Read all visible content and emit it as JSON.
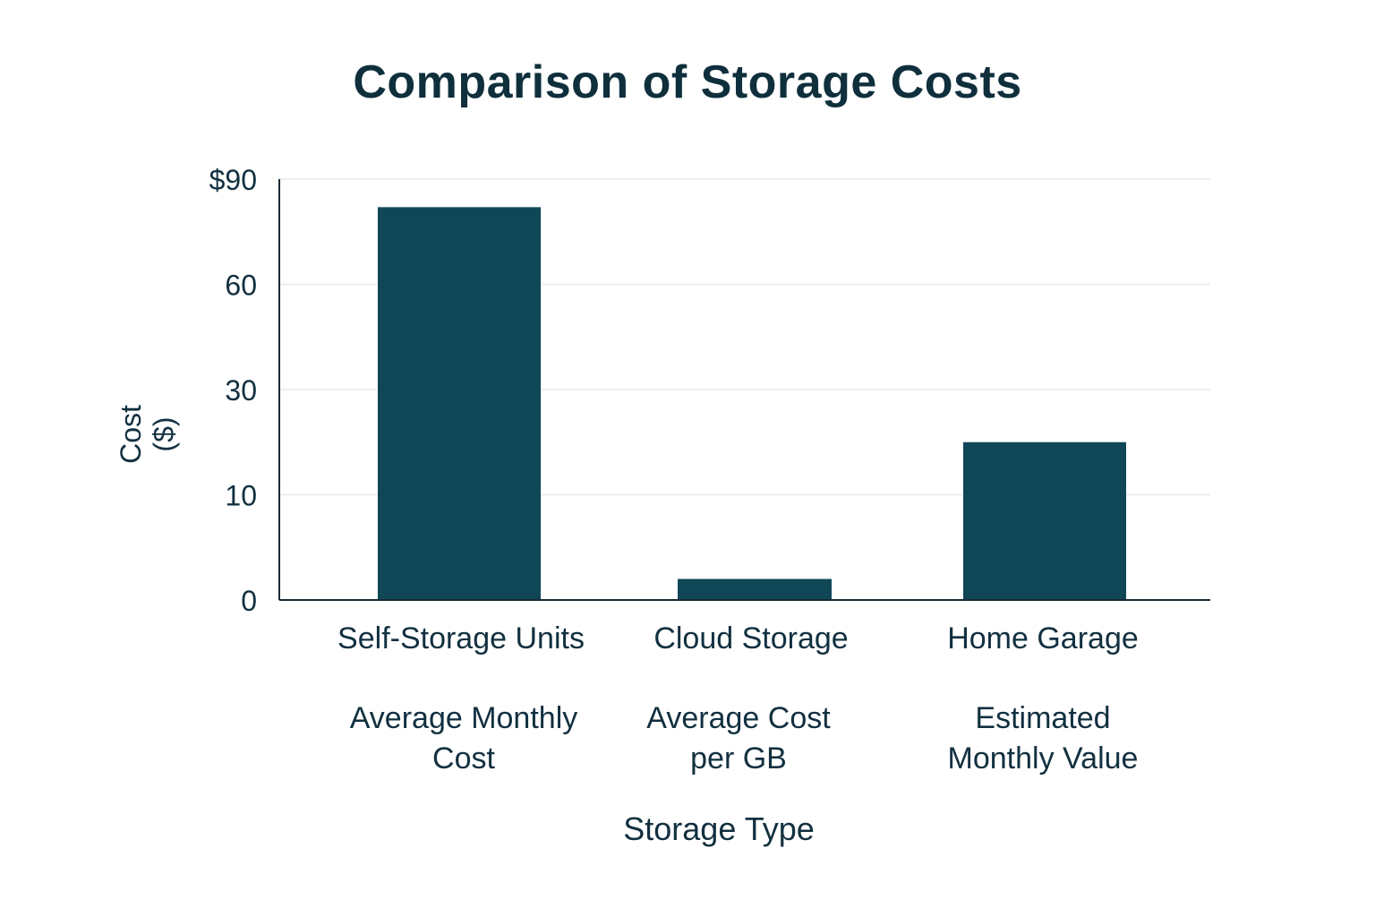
{
  "chart_data": {
    "type": "bar",
    "title": "Comparison of Storage Costs",
    "xlabel": "Storage Type",
    "ylabel": "Cost ($)",
    "categories": [
      "Self-Storage Units",
      "Cloud Storage",
      "Home Garage"
    ],
    "category_sublabels": [
      [
        "Average Monthly",
        "Cost"
      ],
      [
        "Average Cost",
        "per GB"
      ],
      [
        "Estimated",
        "Monthly Value"
      ]
    ],
    "y_tick_labels": [
      "0",
      "10",
      "30",
      "60",
      "$90"
    ],
    "y_tick_values": [
      0,
      10,
      30,
      60,
      90
    ],
    "values": [
      82,
      2,
      20
    ],
    "ylim": [
      0,
      90
    ],
    "y_scale": "categorical-spacing (ticks 0, 10, 30, 60, 90 evenly spaced)",
    "grid": true,
    "bar_color": "#0f4757",
    "axis_color": "#1a2a33",
    "grid_color": "#e6e9eb"
  }
}
